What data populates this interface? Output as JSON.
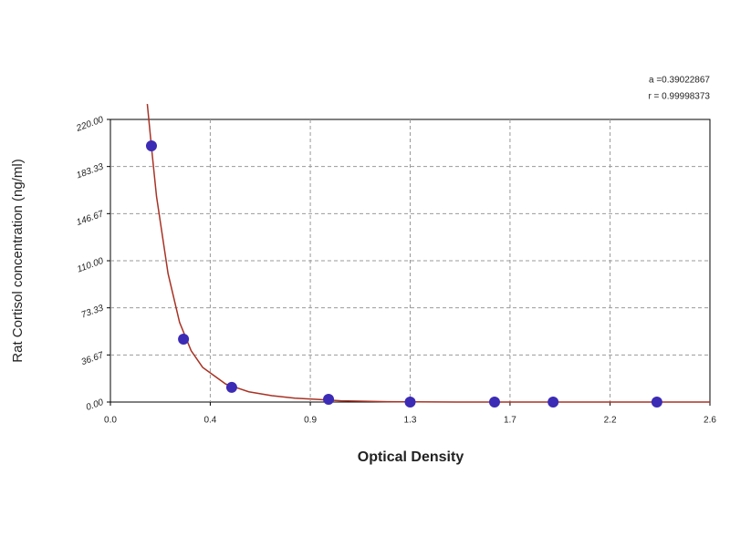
{
  "chart_data": {
    "type": "scatter",
    "x_label": "Optical Density",
    "y_label": "Rat Cortisol concentration (ng/ml)",
    "annotations": [
      "a =0.39022867",
      "r = 0.99998373"
    ],
    "xlim": [
      0,
      2.6
    ],
    "xticks": [
      {
        "value": 0,
        "label": "0.0"
      },
      {
        "value": 0.433,
        "label": "0.4"
      },
      {
        "value": 0.867,
        "label": "0.9"
      },
      {
        "value": 1.3,
        "label": "1.3"
      },
      {
        "value": 1.733,
        "label": "1.7"
      },
      {
        "value": 2.167,
        "label": "2.2"
      },
      {
        "value": 2.6,
        "label": "2.6"
      }
    ],
    "ylim": [
      0,
      220
    ],
    "yticks": [
      {
        "value": 0,
        "label": "0.00"
      },
      {
        "value": 36.67,
        "label": "36.67"
      },
      {
        "value": 73.33,
        "label": "73.33"
      },
      {
        "value": 110,
        "label": "110.00"
      },
      {
        "value": 146.67,
        "label": "146.67"
      },
      {
        "value": 183.33,
        "label": "183.33"
      },
      {
        "value": 220,
        "label": "220.00"
      }
    ],
    "grid": true,
    "points": {
      "color": "#3b2bb5",
      "x": [
        0.178,
        0.317,
        0.526,
        0.946,
        1.3,
        1.666,
        1.92,
        2.37
      ],
      "values": [
        199.4,
        49,
        11.4,
        2.1,
        0,
        0,
        0,
        0
      ]
    },
    "fit": {
      "color": "#a83224",
      "x": [
        0.16,
        0.18,
        0.2,
        0.25,
        0.3,
        0.35,
        0.4,
        0.5,
        0.6,
        0.7,
        0.8,
        0.9,
        1.0,
        1.2,
        1.5,
        2.6
      ],
      "values": [
        232,
        195,
        160,
        100,
        62,
        40,
        27,
        14,
        8,
        5,
        3,
        2,
        1,
        0.3,
        0,
        0
      ]
    }
  }
}
